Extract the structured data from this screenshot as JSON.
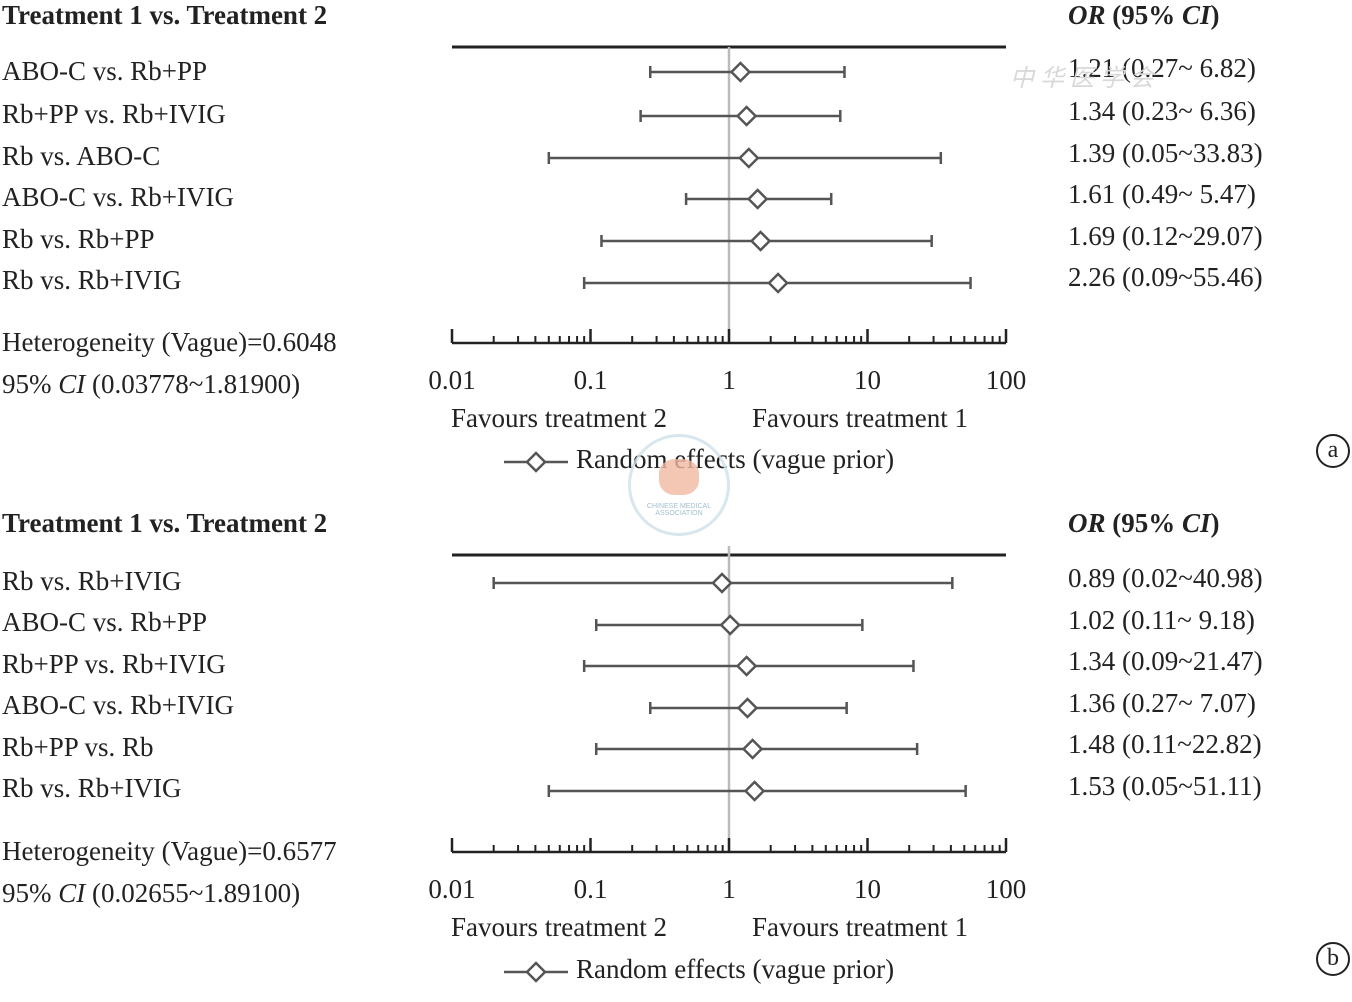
{
  "chart_data": [
    {
      "panel": "a",
      "type": "forest",
      "header_left": "Treatment 1 vs. Treatment 2",
      "header_right_italic": "OR",
      "header_right_rest": " (95% ",
      "header_right_ci": "CI",
      "header_right_end": ")",
      "x_scale": "log",
      "xlim": [
        0.01,
        100
      ],
      "ticks": [
        0.01,
        0.1,
        1,
        10,
        100
      ],
      "tick_labels": [
        "0.01",
        "0.1",
        "1",
        "10",
        "100"
      ],
      "reference_line": 1,
      "rows": [
        {
          "label": "ABO-C vs. Rb+PP",
          "or": 1.21,
          "lo": 0.27,
          "hi": 6.82,
          "ci_text": "1.21 (0.27~  6.82)"
        },
        {
          "label": "Rb+PP vs. Rb+IVIG",
          "or": 1.34,
          "lo": 0.23,
          "hi": 6.36,
          "ci_text": "1.34 (0.23~  6.36)"
        },
        {
          "label": "Rb vs. ABO-C",
          "or": 1.39,
          "lo": 0.05,
          "hi": 33.83,
          "ci_text": "1.39 (0.05~33.83)"
        },
        {
          "label": "ABO-C vs. Rb+IVIG",
          "or": 1.61,
          "lo": 0.49,
          "hi": 5.47,
          "ci_text": "1.61 (0.49~  5.47)"
        },
        {
          "label": "Rb vs. Rb+PP",
          "or": 1.69,
          "lo": 0.12,
          "hi": 29.07,
          "ci_text": "1.69 (0.12~29.07)"
        },
        {
          "label": "Rb vs. Rb+IVIG",
          "or": 2.26,
          "lo": 0.09,
          "hi": 55.46,
          "ci_text": "2.26 (0.09~55.46)"
        }
      ],
      "heterogeneity": "Heterogeneity (Vague)=0.6048",
      "het_ci_prefix": "95% ",
      "het_ci_italic": "CI",
      "het_ci_rest": " (0.03778~1.81900)",
      "favours_left": "Favours treatment 2",
      "favours_right": "Favours treatment 1",
      "legend": "Random effects (vague prior)",
      "badge": "a"
    },
    {
      "panel": "b",
      "type": "forest",
      "header_left": "Treatment 1 vs. Treatment 2",
      "header_right_italic": "OR",
      "header_right_rest": " (95% ",
      "header_right_ci": "CI",
      "header_right_end": ")",
      "x_scale": "log",
      "xlim": [
        0.01,
        100
      ],
      "ticks": [
        0.01,
        0.1,
        1,
        10,
        100
      ],
      "tick_labels": [
        "0.01",
        "0.1",
        "1",
        "10",
        "100"
      ],
      "reference_line": 1,
      "rows": [
        {
          "label": "Rb vs. Rb+IVIG",
          "or": 0.89,
          "lo": 0.02,
          "hi": 40.98,
          "ci_text": "0.89 (0.02~40.98)"
        },
        {
          "label": "ABO-C vs. Rb+PP",
          "or": 1.02,
          "lo": 0.11,
          "hi": 9.18,
          "ci_text": "1.02 (0.11~  9.18)"
        },
        {
          "label": "Rb+PP vs. Rb+IVIG",
          "or": 1.34,
          "lo": 0.09,
          "hi": 21.47,
          "ci_text": "1.34 (0.09~21.47)"
        },
        {
          "label": "ABO-C vs. Rb+IVIG",
          "or": 1.36,
          "lo": 0.27,
          "hi": 7.07,
          "ci_text": "1.36 (0.27~  7.07)"
        },
        {
          "label": "Rb+PP vs. Rb",
          "or": 1.48,
          "lo": 0.11,
          "hi": 22.82,
          "ci_text": "1.48 (0.11~22.82)"
        },
        {
          "label": "Rb vs. Rb+IVIG",
          "or": 1.53,
          "lo": 0.05,
          "hi": 51.11,
          "ci_text": "1.53 (0.05~51.11)"
        }
      ],
      "heterogeneity": "Heterogeneity (Vague)=0.6577",
      "het_ci_prefix": "95% ",
      "het_ci_italic": "CI",
      "het_ci_rest": " (0.02655~1.89100)",
      "favours_left": "Favours treatment 2",
      "favours_right": "Favours treatment 1",
      "legend": "Random effects (vague prior)",
      "badge": "b"
    }
  ],
  "colors": {
    "line": "#555555",
    "axis": "#222222",
    "refline": "#bbbbbb",
    "marker_fill": "#ffffff"
  },
  "watermark_text": "中华医学会",
  "seal_text": "CHINESE MEDICAL ASSOCIATION"
}
